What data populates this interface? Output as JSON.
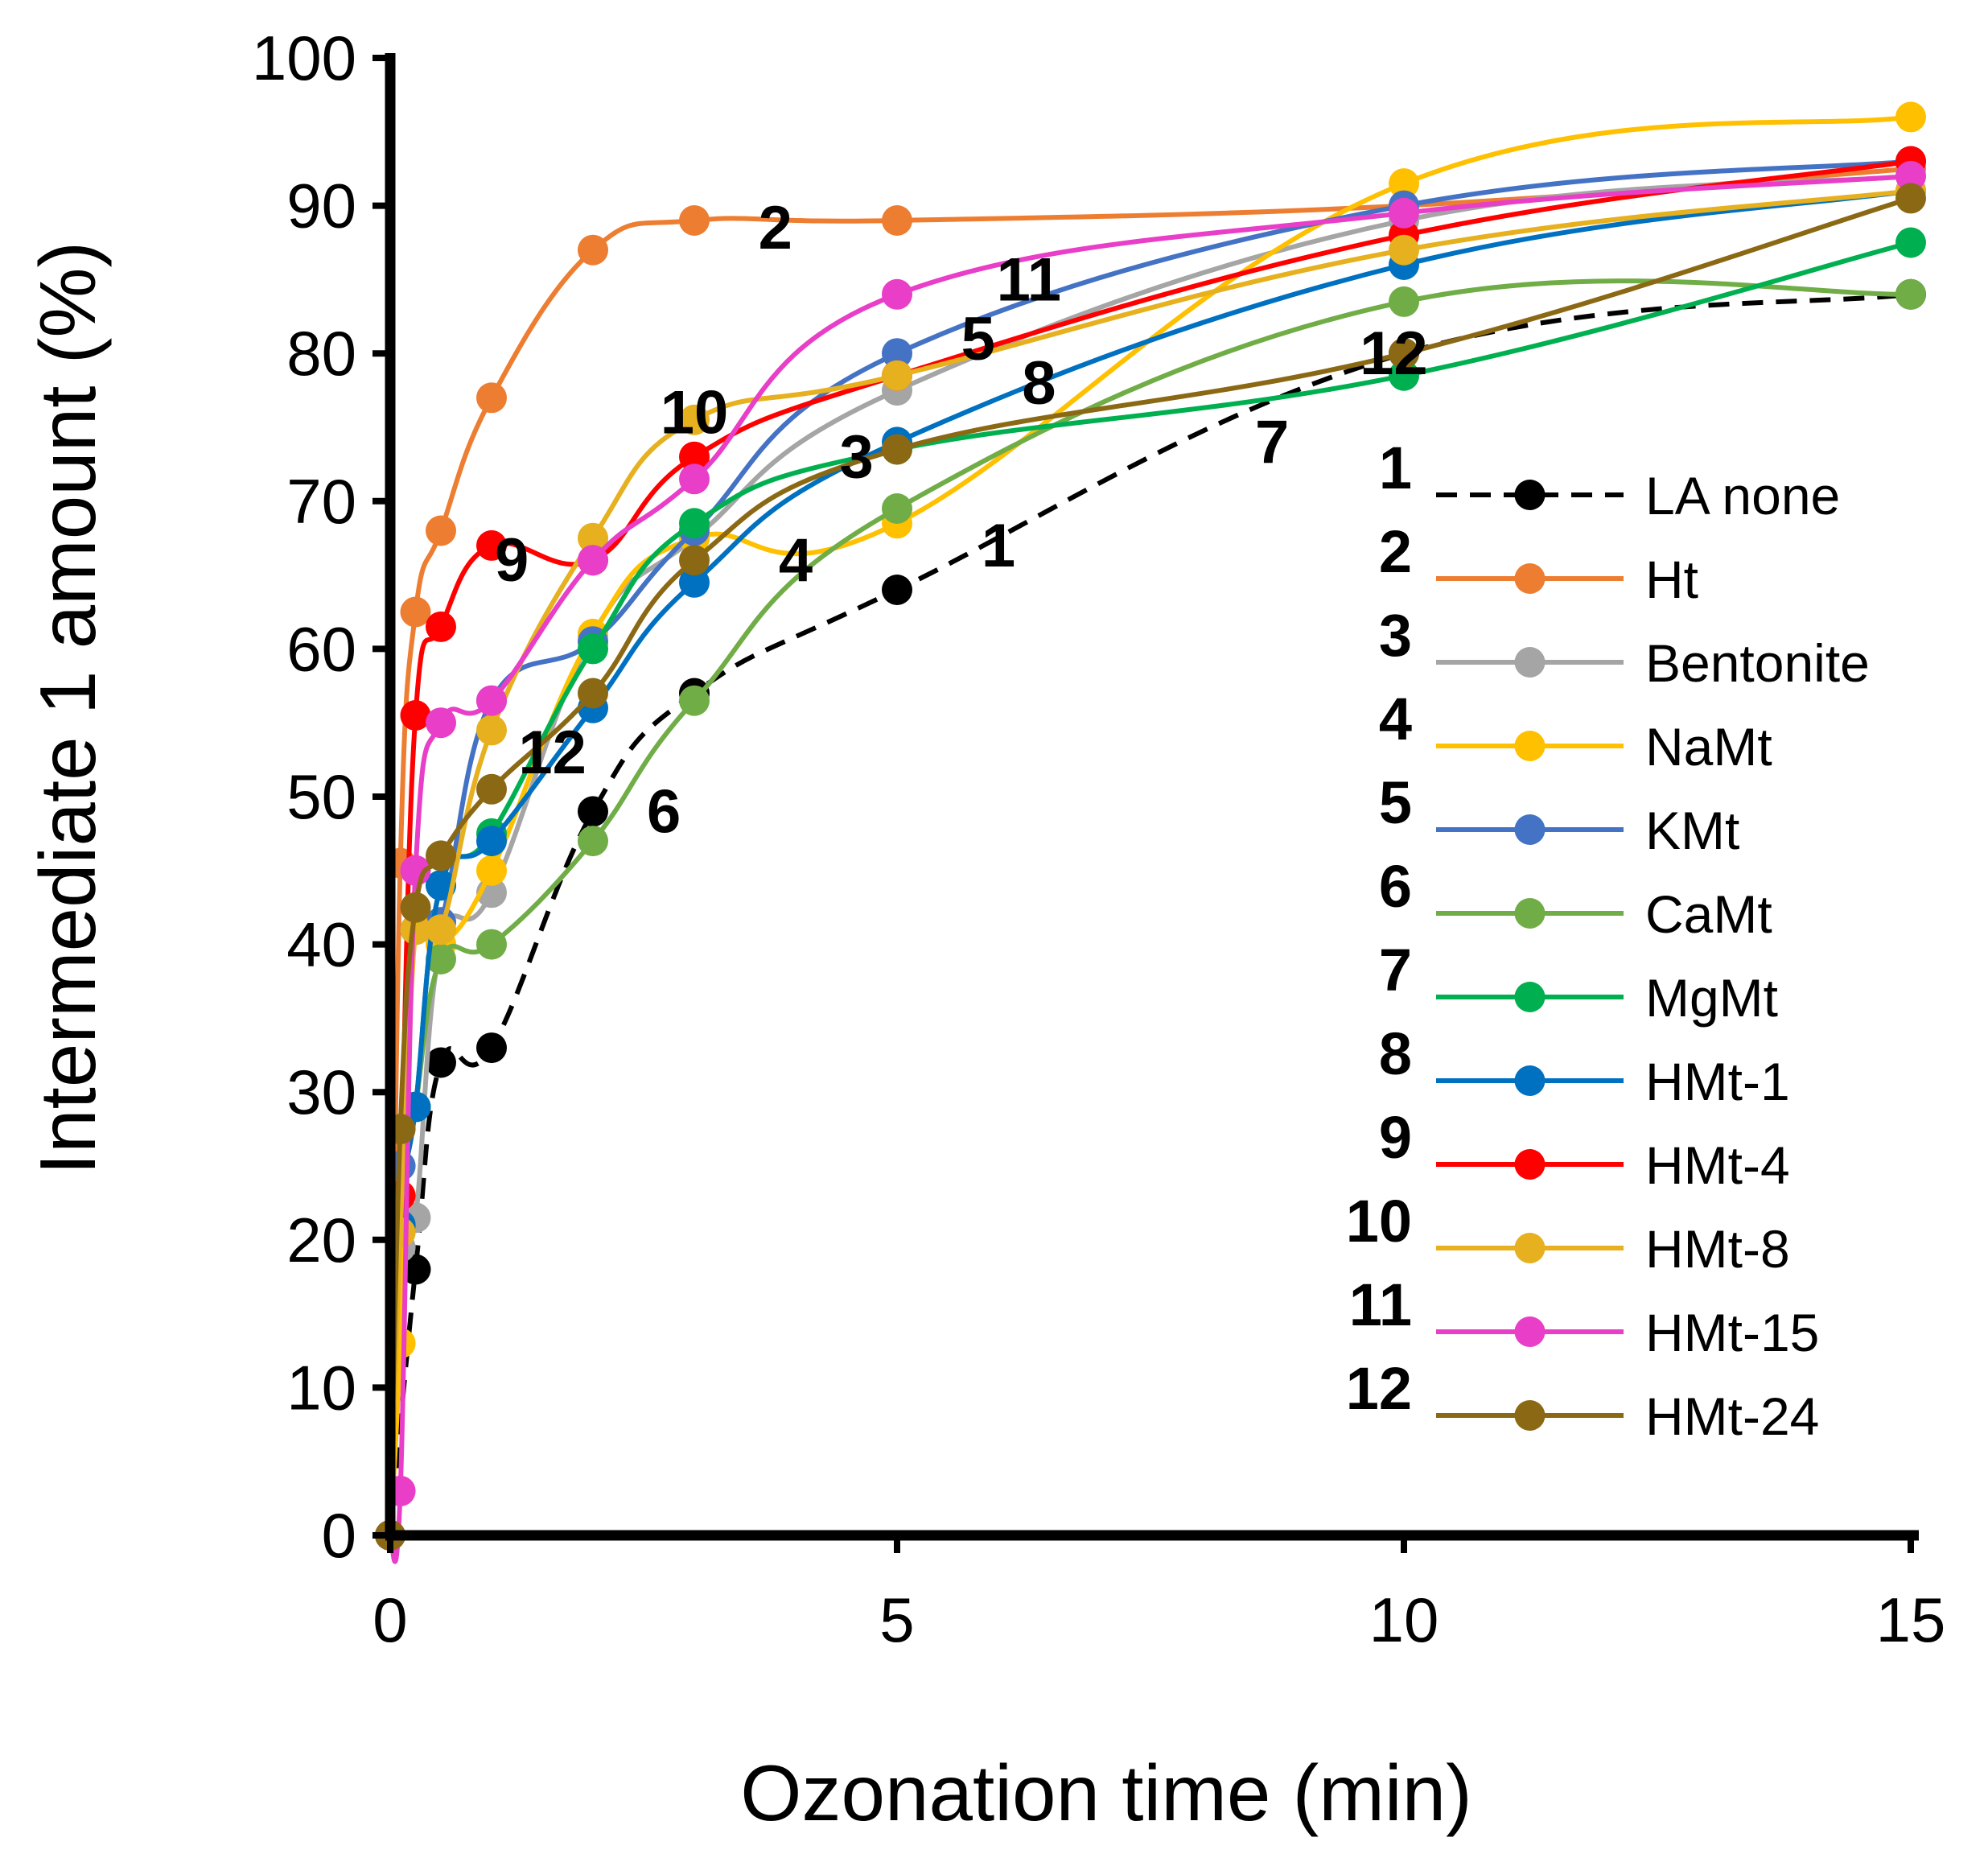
{
  "chart_data": {
    "type": "line",
    "xlabel": "Ozonation time (min)",
    "ylabel": "Intermediate 1 amount (%)",
    "xlim": [
      0,
      15
    ],
    "ylim": [
      0,
      100
    ],
    "xticks": [
      0,
      5,
      10,
      15
    ],
    "yticks": [
      0,
      10,
      20,
      30,
      40,
      50,
      60,
      70,
      80,
      90,
      100
    ],
    "grid": false,
    "legend_position": "right",
    "series": [
      {
        "num": "1",
        "name": "LA none",
        "color": "#000000",
        "dashed": true,
        "x": [
          0,
          0.25,
          0.5,
          1,
          2,
          3,
          5,
          10,
          15
        ],
        "y": [
          0,
          18,
          32,
          33,
          49,
          57,
          64,
          80,
          84
        ]
      },
      {
        "num": "2",
        "name": "Ht",
        "color": "#ED7D31",
        "dashed": false,
        "x": [
          0,
          0.1,
          0.25,
          0.5,
          1,
          2,
          3,
          5,
          10,
          15
        ],
        "y": [
          0,
          45.5,
          62.5,
          68,
          77,
          87,
          89,
          89,
          90,
          92.5
        ]
      },
      {
        "num": "3",
        "name": "Bentonite",
        "color": "#A5A5A5",
        "dashed": false,
        "x": [
          0,
          0.1,
          0.25,
          0.5,
          1,
          2,
          3,
          5,
          10,
          15
        ],
        "y": [
          0,
          19.5,
          21.5,
          40,
          43.5,
          61,
          67.5,
          77.5,
          89,
          92
        ]
      },
      {
        "num": "4",
        "name": "NaMt",
        "color": "#FFC000",
        "dashed": false,
        "x": [
          0,
          0.1,
          0.25,
          0.5,
          1,
          2,
          3,
          5,
          10,
          15
        ],
        "y": [
          0,
          13,
          41,
          40,
          45,
          61,
          67.5,
          68.5,
          91.5,
          96
        ]
      },
      {
        "num": "5",
        "name": "KMt",
        "color": "#4472C4",
        "dashed": false,
        "x": [
          0,
          0.1,
          0.25,
          0.5,
          1,
          2,
          3,
          5,
          10,
          15
        ],
        "y": [
          0,
          25,
          41,
          41.5,
          56.5,
          60.5,
          68,
          80,
          90,
          93
        ]
      },
      {
        "num": "6",
        "name": "CaMt",
        "color": "#70AD47",
        "dashed": false,
        "x": [
          0,
          0.1,
          0.25,
          0.5,
          1,
          2,
          3,
          5,
          10,
          15
        ],
        "y": [
          0,
          21,
          29,
          39,
          40,
          47,
          56.5,
          69.5,
          83.5,
          84
        ]
      },
      {
        "num": "7",
        "name": "MgMt",
        "color": "#00B050",
        "dashed": false,
        "x": [
          0,
          0.1,
          0.25,
          0.5,
          1,
          2,
          3,
          5,
          10,
          15
        ],
        "y": [
          0,
          21,
          29,
          44,
          47.5,
          60,
          68.5,
          73.5,
          78.5,
          87.5
        ]
      },
      {
        "num": "8",
        "name": "HMt-1",
        "color": "#0070C0",
        "dashed": false,
        "x": [
          0,
          0.1,
          0.25,
          0.5,
          1,
          2,
          3,
          5,
          10,
          15
        ],
        "y": [
          0,
          21,
          29,
          44,
          47,
          56,
          64.5,
          74,
          86,
          91
        ]
      },
      {
        "num": "9",
        "name": "HMt-4",
        "color": "#FF0000",
        "dashed": false,
        "x": [
          0,
          0.1,
          0.25,
          0.5,
          1,
          2,
          3,
          5,
          10,
          15
        ],
        "y": [
          0,
          23,
          55.5,
          61.5,
          67,
          66,
          73,
          78.5,
          88,
          93
        ]
      },
      {
        "num": "10",
        "name": "HMt-8",
        "color": "#E6B01E",
        "dashed": false,
        "x": [
          0,
          0.1,
          0.25,
          0.5,
          1,
          2,
          3,
          5,
          10,
          15
        ],
        "y": [
          0,
          20.5,
          41,
          41,
          54.5,
          67.5,
          75.5,
          78.5,
          87,
          91
        ]
      },
      {
        "num": "11",
        "name": "HMt-15",
        "color": "#E83EC8",
        "dashed": false,
        "x": [
          0,
          0.1,
          0.25,
          0.5,
          1,
          2,
          3,
          5,
          10,
          15
        ],
        "y": [
          0,
          3,
          45,
          55,
          56.5,
          66,
          71.5,
          84,
          89.5,
          92
        ]
      },
      {
        "num": "12",
        "name": "HMt-24",
        "color": "#8B6914",
        "dashed": false,
        "x": [
          0,
          0.1,
          0.25,
          0.5,
          1,
          2,
          3,
          5,
          10,
          15
        ],
        "y": [
          0,
          27.5,
          42.5,
          46,
          50.5,
          57,
          66,
          73.5,
          80,
          90.5
        ]
      }
    ],
    "annotations": [
      {
        "text": "2",
        "x": 3.8,
        "y": 88.5
      },
      {
        "text": "11",
        "x": 6.3,
        "y": 85
      },
      {
        "text": "5",
        "x": 5.8,
        "y": 81
      },
      {
        "text": "10",
        "x": 3.0,
        "y": 76
      },
      {
        "text": "8",
        "x": 6.4,
        "y": 78
      },
      {
        "text": "3",
        "x": 4.6,
        "y": 73
      },
      {
        "text": "7",
        "x": 8.7,
        "y": 74
      },
      {
        "text": "12",
        "x": 9.9,
        "y": 80
      },
      {
        "text": "9",
        "x": 1.2,
        "y": 66
      },
      {
        "text": "4",
        "x": 4.0,
        "y": 66
      },
      {
        "text": "1",
        "x": 6.0,
        "y": 67
      },
      {
        "text": "12",
        "x": 1.6,
        "y": 53
      },
      {
        "text": "6",
        "x": 2.7,
        "y": 49
      }
    ]
  }
}
